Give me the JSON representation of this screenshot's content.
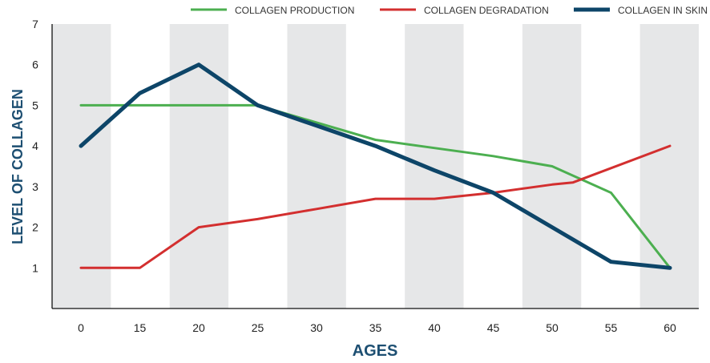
{
  "chart_data": {
    "type": "line",
    "title": "",
    "xlabel": "AGES",
    "ylabel": "LEVEL OF COLLAGEN",
    "categories": [
      "0",
      "15",
      "20",
      "25",
      "30",
      "35",
      "40",
      "45",
      "50",
      "55",
      "60"
    ],
    "ylim": [
      0,
      7
    ],
    "yticks": [
      1,
      2,
      3,
      4,
      5,
      6,
      7
    ],
    "legend_position": "top",
    "background": "alternating grey and white vertical bands",
    "series": [
      {
        "name": "COLLAGEN PRODUCTION",
        "color": "#4caf50",
        "points": [
          [
            0,
            5
          ],
          [
            1,
            5
          ],
          [
            2,
            5
          ],
          [
            3,
            5
          ],
          [
            5,
            4.15
          ],
          [
            6,
            3.95
          ],
          [
            7,
            3.75
          ],
          [
            8,
            3.5
          ],
          [
            9,
            2.85
          ],
          [
            10,
            1
          ]
        ]
      },
      {
        "name": "COLLAGEN DEGRADATION",
        "color": "#d32f2f",
        "points": [
          [
            0,
            1
          ],
          [
            1,
            1
          ],
          [
            2,
            2
          ],
          [
            3,
            2.2
          ],
          [
            4,
            2.45
          ],
          [
            5,
            2.7
          ],
          [
            6,
            2.7
          ],
          [
            7,
            2.85
          ],
          [
            8,
            3.05
          ],
          [
            8.35,
            3.1
          ],
          [
            10,
            4
          ]
        ]
      },
      {
        "name": "COLLAGEN IN SKIN",
        "color": "#0d4568",
        "points": [
          [
            0,
            4
          ],
          [
            1,
            5.3
          ],
          [
            2,
            6
          ],
          [
            3,
            5
          ],
          [
            4,
            4.5
          ],
          [
            5,
            4
          ],
          [
            6,
            3.4
          ],
          [
            7,
            2.85
          ],
          [
            8,
            2
          ],
          [
            9,
            1.15
          ],
          [
            10,
            1
          ]
        ]
      }
    ]
  }
}
